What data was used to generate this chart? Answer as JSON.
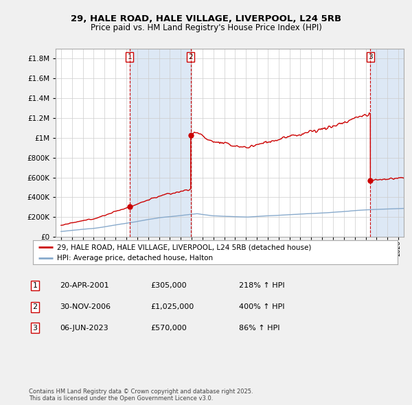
{
  "title": "29, HALE ROAD, HALE VILLAGE, LIVERPOOL, L24 5RB",
  "subtitle": "Price paid vs. HM Land Registry's House Price Index (HPI)",
  "legend_label_red": "29, HALE ROAD, HALE VILLAGE, LIVERPOOL, L24 5RB (detached house)",
  "legend_label_blue": "HPI: Average price, detached house, Halton",
  "footnote": "Contains HM Land Registry data © Crown copyright and database right 2025.\nThis data is licensed under the Open Government Licence v3.0.",
  "transactions": [
    {
      "num": 1,
      "date": "20-APR-2001",
      "price": "£305,000",
      "hpi": "218% ↑ HPI",
      "year_x": 2001.3
    },
    {
      "num": 2,
      "date": "30-NOV-2006",
      "price": "£1,025,000",
      "hpi": "400% ↑ HPI",
      "year_x": 2006.917
    },
    {
      "num": 3,
      "date": "06-JUN-2023",
      "price": "£570,000",
      "hpi": "86% ↑ HPI",
      "year_x": 2023.43
    }
  ],
  "ylim": [
    0,
    1900000
  ],
  "xlim": [
    1994.5,
    2026.5
  ],
  "background_color": "#f0f0f0",
  "plot_bg_color": "#ffffff",
  "red_color": "#cc0000",
  "blue_color": "#88aacc",
  "shade_color": "#dde8f5",
  "vline_color": "#cc0000",
  "grid_color": "#cccccc"
}
